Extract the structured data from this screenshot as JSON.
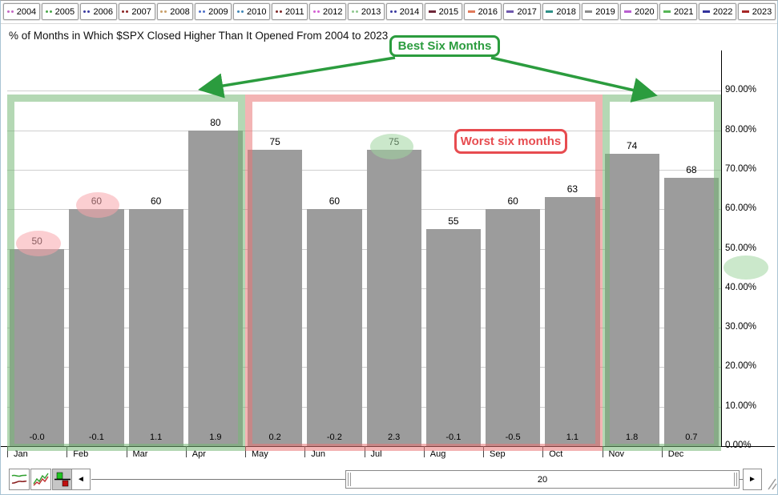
{
  "year_toolbar": {
    "buttons": [
      {
        "label": "2004",
        "marker": "dots",
        "color": "#c467c4"
      },
      {
        "label": "2005",
        "marker": "dots",
        "color": "#4aa64a"
      },
      {
        "label": "2006",
        "marker": "dots",
        "color": "#3a3aa0"
      },
      {
        "label": "2007",
        "marker": "dots",
        "color": "#8b2424"
      },
      {
        "label": "2008",
        "marker": "dots",
        "color": "#c9a06a"
      },
      {
        "label": "2009",
        "marker": "dots",
        "color": "#4f6fc9"
      },
      {
        "label": "2010",
        "marker": "dots",
        "color": "#3f85b5"
      },
      {
        "label": "2011",
        "marker": "dots",
        "color": "#7e2a2a"
      },
      {
        "label": "2012",
        "marker": "dots",
        "color": "#d45fd4"
      },
      {
        "label": "2013",
        "marker": "dots",
        "color": "#90c990"
      },
      {
        "label": "2014",
        "marker": "dots",
        "color": "#3a3aa0"
      },
      {
        "label": "2015",
        "marker": "dash",
        "color": "#6e2639"
      },
      {
        "label": "2016",
        "marker": "dash",
        "color": "#e0795a"
      },
      {
        "label": "2017",
        "marker": "dash",
        "color": "#6f58ad"
      },
      {
        "label": "2018",
        "marker": "dash",
        "color": "#2e8f86"
      },
      {
        "label": "2019",
        "marker": "dash",
        "color": "#8c8c8c"
      },
      {
        "label": "2020",
        "marker": "dash",
        "color": "#b95fd0"
      },
      {
        "label": "2021",
        "marker": "dash",
        "color": "#57b657"
      },
      {
        "label": "2022",
        "marker": "dash",
        "color": "#32329b"
      },
      {
        "label": "2023",
        "marker": "dash",
        "color": "#a62626"
      }
    ]
  },
  "header": {
    "title": "% of Months in Which $SPX Closed Higher Than It Opened From 2004 to 2023"
  },
  "annotations": {
    "best_label": "Best Six Months",
    "worst_label": "Worst six months",
    "best_color": "#2b9c3e",
    "worst_color": "#e74c50"
  },
  "chart_data": {
    "type": "bar",
    "title": "% of Months in Which $SPX Closed Higher Than It Opened From 2004 to 2023",
    "categories": [
      "Jan",
      "Feb",
      "Mar",
      "Apr",
      "May",
      "Jun",
      "Jul",
      "Aug",
      "Sep",
      "Oct",
      "Nov",
      "Dec"
    ],
    "values": [
      50,
      60,
      60,
      80,
      75,
      60,
      75,
      55,
      60,
      63,
      74,
      68
    ],
    "footer_values": [
      "-0.0",
      "-0.1",
      "1.1",
      "1.9",
      "0.2",
      "-0.2",
      "2.3",
      "-0.1",
      "-0.5",
      "1.1",
      "1.8",
      "0.7"
    ],
    "ylim": [
      0,
      100
    ],
    "bar_color": "#9c9c9c",
    "grid": true,
    "y_axis_side": "right",
    "y_ticks": [
      {
        "value": 0,
        "label": "0.00%"
      },
      {
        "value": 10,
        "label": "10.00%"
      },
      {
        "value": 20,
        "label": "20.00%"
      },
      {
        "value": 30,
        "label": "30.00%"
      },
      {
        "value": 40,
        "label": "40.00%"
      },
      {
        "value": 50,
        "label": "50.00%"
      },
      {
        "value": 60,
        "label": "60.00%"
      },
      {
        "value": 70,
        "label": "70.00%"
      },
      {
        "value": 80,
        "label": "80.00%"
      },
      {
        "value": 90,
        "label": "90.00%"
      }
    ],
    "regions": [
      {
        "name": "best-six-months-left",
        "start": 0,
        "end": 3,
        "color": "green"
      },
      {
        "name": "worst-six-months",
        "start": 4,
        "end": 9,
        "color": "red"
      },
      {
        "name": "best-six-months-right",
        "start": 10,
        "end": 11,
        "color": "green"
      }
    ],
    "highlights": [
      {
        "name": "jan-value-highlight",
        "x": 47,
        "y": 303,
        "rx": 28,
        "ry": 16,
        "color": "pink"
      },
      {
        "name": "feb-value-highlight",
        "x": 121,
        "y": 255,
        "rx": 27,
        "ry": 16,
        "color": "pink"
      },
      {
        "name": "jul-value-highlight",
        "x": 488,
        "y": 182,
        "rx": 27,
        "ry": 16,
        "color": "green"
      },
      {
        "name": "axis-area-highlight",
        "x": 930,
        "y": 333,
        "rx": 28,
        "ry": 15,
        "color": "green"
      }
    ]
  },
  "bottom_toolbar": {
    "chart_type_buttons": [
      {
        "name": "smooth-line-chart-button",
        "selected": false
      },
      {
        "name": "zigzag-line-chart-button",
        "selected": false
      },
      {
        "name": "bar-chart-button",
        "selected": true
      }
    ],
    "scroll_left_glyph": "◄",
    "scroll_right_glyph": "►",
    "scroll_thumb_value": "20"
  }
}
